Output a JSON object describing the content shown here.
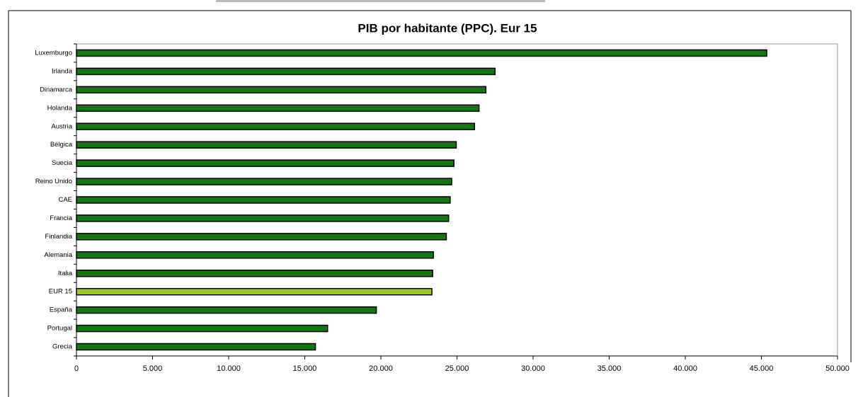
{
  "chart_data": {
    "type": "bar",
    "orientation": "horizontal",
    "title": "PIB por habitante (PPC). Eur 15",
    "categories": [
      "Luxemburgo",
      "Irlanda",
      "Dinamarca",
      "Holanda",
      "Austria",
      "Bélgica",
      "Suecia",
      "Reino Unido",
      "CAE",
      "Francia",
      "Finlandia",
      "Alemania",
      "Italia",
      "EUR 15",
      "España",
      "Portugal",
      "Grecia"
    ],
    "values": [
      45350,
      27500,
      26900,
      26450,
      26150,
      24950,
      24800,
      24650,
      24550,
      24450,
      24300,
      23450,
      23400,
      23350,
      19700,
      16500,
      15700
    ],
    "colors": [
      "#107a10",
      "#107a10",
      "#107a10",
      "#107a10",
      "#107a10",
      "#107a10",
      "#107a10",
      "#107a10",
      "#107a10",
      "#107a10",
      "#107a10",
      "#107a10",
      "#107a10",
      "#99cc22",
      "#107a10",
      "#107a10",
      "#107a10"
    ],
    "xlim": [
      0,
      50000
    ],
    "xticks": [
      0,
      {
        "value": 5000,
        "label": "5.000"
      },
      {
        "value": 10000,
        "label": "10.000"
      },
      {
        "value": 15000,
        "label": "15.000"
      },
      {
        "value": 20000,
        "label": "20.000"
      },
      {
        "value": 25000,
        "label": "25.000"
      },
      {
        "value": 30000,
        "label": "30.000"
      },
      {
        "value": 35000,
        "label": "35.000"
      },
      {
        "value": 40000,
        "label": "40.000"
      },
      {
        "value": 45000,
        "label": "45.000"
      },
      {
        "value": 50000,
        "label": "50.000"
      }
    ],
    "grid": false
  }
}
